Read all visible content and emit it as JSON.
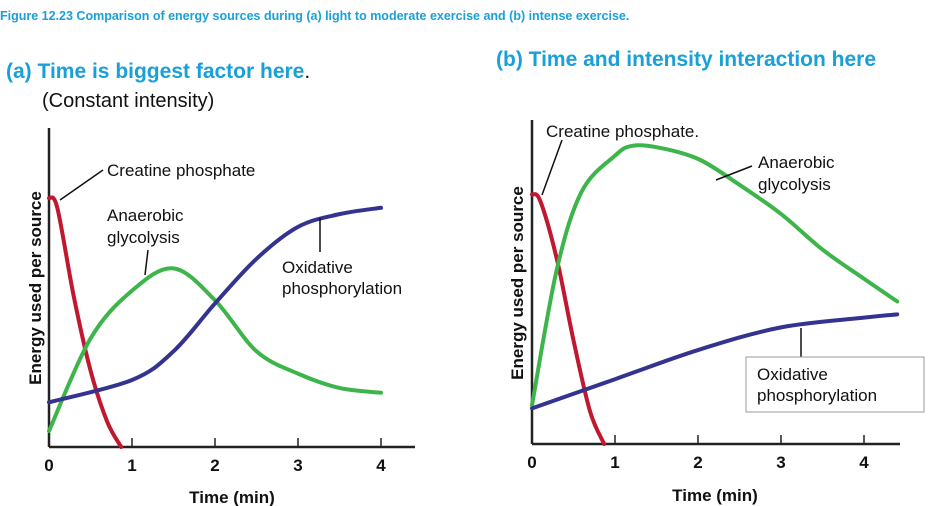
{
  "caption": "Figure 12.23  Comparison of energy sources during (a) light to moderate exercise and (b) intense exercise.",
  "panel_a": {
    "heading": "(a) Time is biggest factor here",
    "heading_dot": ".",
    "subheading": "(Constant intensity)"
  },
  "panel_b": {
    "heading": "(b)  Time and intensity interaction here"
  },
  "chart_data": [
    {
      "type": "line",
      "title": "(a) Time is biggest factor here. (Constant intensity)",
      "xlabel": "Time (min)",
      "ylabel": "Energy used per source",
      "xlim": [
        0,
        4.4
      ],
      "ylim": [
        0,
        100
      ],
      "xticks": [
        "0",
        "1",
        "2",
        "3",
        "4"
      ],
      "series": [
        {
          "name": "Creatine phosphate",
          "color": "#c0182f",
          "points": [
            [
              0,
              78
            ],
            [
              0.1,
              75
            ],
            [
              0.3,
              47
            ],
            [
              0.5,
              24
            ],
            [
              0.7,
              8
            ],
            [
              0.87,
              0
            ]
          ]
        },
        {
          "name": "Anaerobic glycolysis",
          "color": "#3db54a",
          "points": [
            [
              0,
              5
            ],
            [
              0.5,
              34
            ],
            [
              1,
              49
            ],
            [
              1.5,
              56
            ],
            [
              2,
              46
            ],
            [
              2.5,
              30
            ],
            [
              3,
              23
            ],
            [
              3.5,
              18.5
            ],
            [
              4,
              17
            ]
          ]
        },
        {
          "name": "Oxidative phosphorylation",
          "color": "#34338f",
          "points": [
            [
              0,
              14
            ],
            [
              1,
              21
            ],
            [
              1.5,
              30
            ],
            [
              2,
              45
            ],
            [
              2.5,
              59
            ],
            [
              3,
              69
            ],
            [
              3.5,
              73
            ],
            [
              4,
              75
            ]
          ]
        }
      ],
      "labels": {
        "cp": "Creatine phosphate",
        "ag1": "Anaerobic",
        "ag2": "glycolysis",
        "op1": "Oxidative",
        "op2": "phosphorylation"
      }
    },
    {
      "type": "line",
      "title": "(b)  Time and intensity interaction here",
      "xlabel": "Time (min)",
      "ylabel": "Energy used per source",
      "xlim": [
        0,
        4.4
      ],
      "ylim": [
        0,
        100
      ],
      "xticks": [
        "0",
        "1",
        "2",
        "3",
        "4"
      ],
      "series": [
        {
          "name": "Creatine phosphate",
          "color": "#c0182f",
          "points": [
            [
              0,
              77
            ],
            [
              0.1,
              75
            ],
            [
              0.3,
              57
            ],
            [
              0.5,
              32
            ],
            [
              0.7,
              10
            ],
            [
              0.87,
              0
            ]
          ]
        },
        {
          "name": "Anaerobic glycolysis",
          "color": "#3db54a",
          "points": [
            [
              0,
              12
            ],
            [
              0.3,
              54
            ],
            [
              0.6,
              78
            ],
            [
              1,
              89
            ],
            [
              1.2,
              92
            ],
            [
              1.5,
              91.6
            ],
            [
              2,
              88
            ],
            [
              2.5,
              80
            ],
            [
              3,
              71
            ],
            [
              3.5,
              60
            ],
            [
              4,
              51
            ],
            [
              4.4,
              44
            ]
          ]
        },
        {
          "name": "Oxidative phosphorylation",
          "color": "#34338f",
          "points": [
            [
              0,
              11
            ],
            [
              1,
              20
            ],
            [
              2,
              29
            ],
            [
              3,
              36
            ],
            [
              4,
              39
            ],
            [
              4.4,
              40
            ]
          ]
        }
      ],
      "labels": {
        "cp": "Creatine phosphate.",
        "ag1": "Anaerobic",
        "ag2": "glycolysis",
        "op1": "Oxidative",
        "op2": "phosphorylation"
      }
    }
  ]
}
